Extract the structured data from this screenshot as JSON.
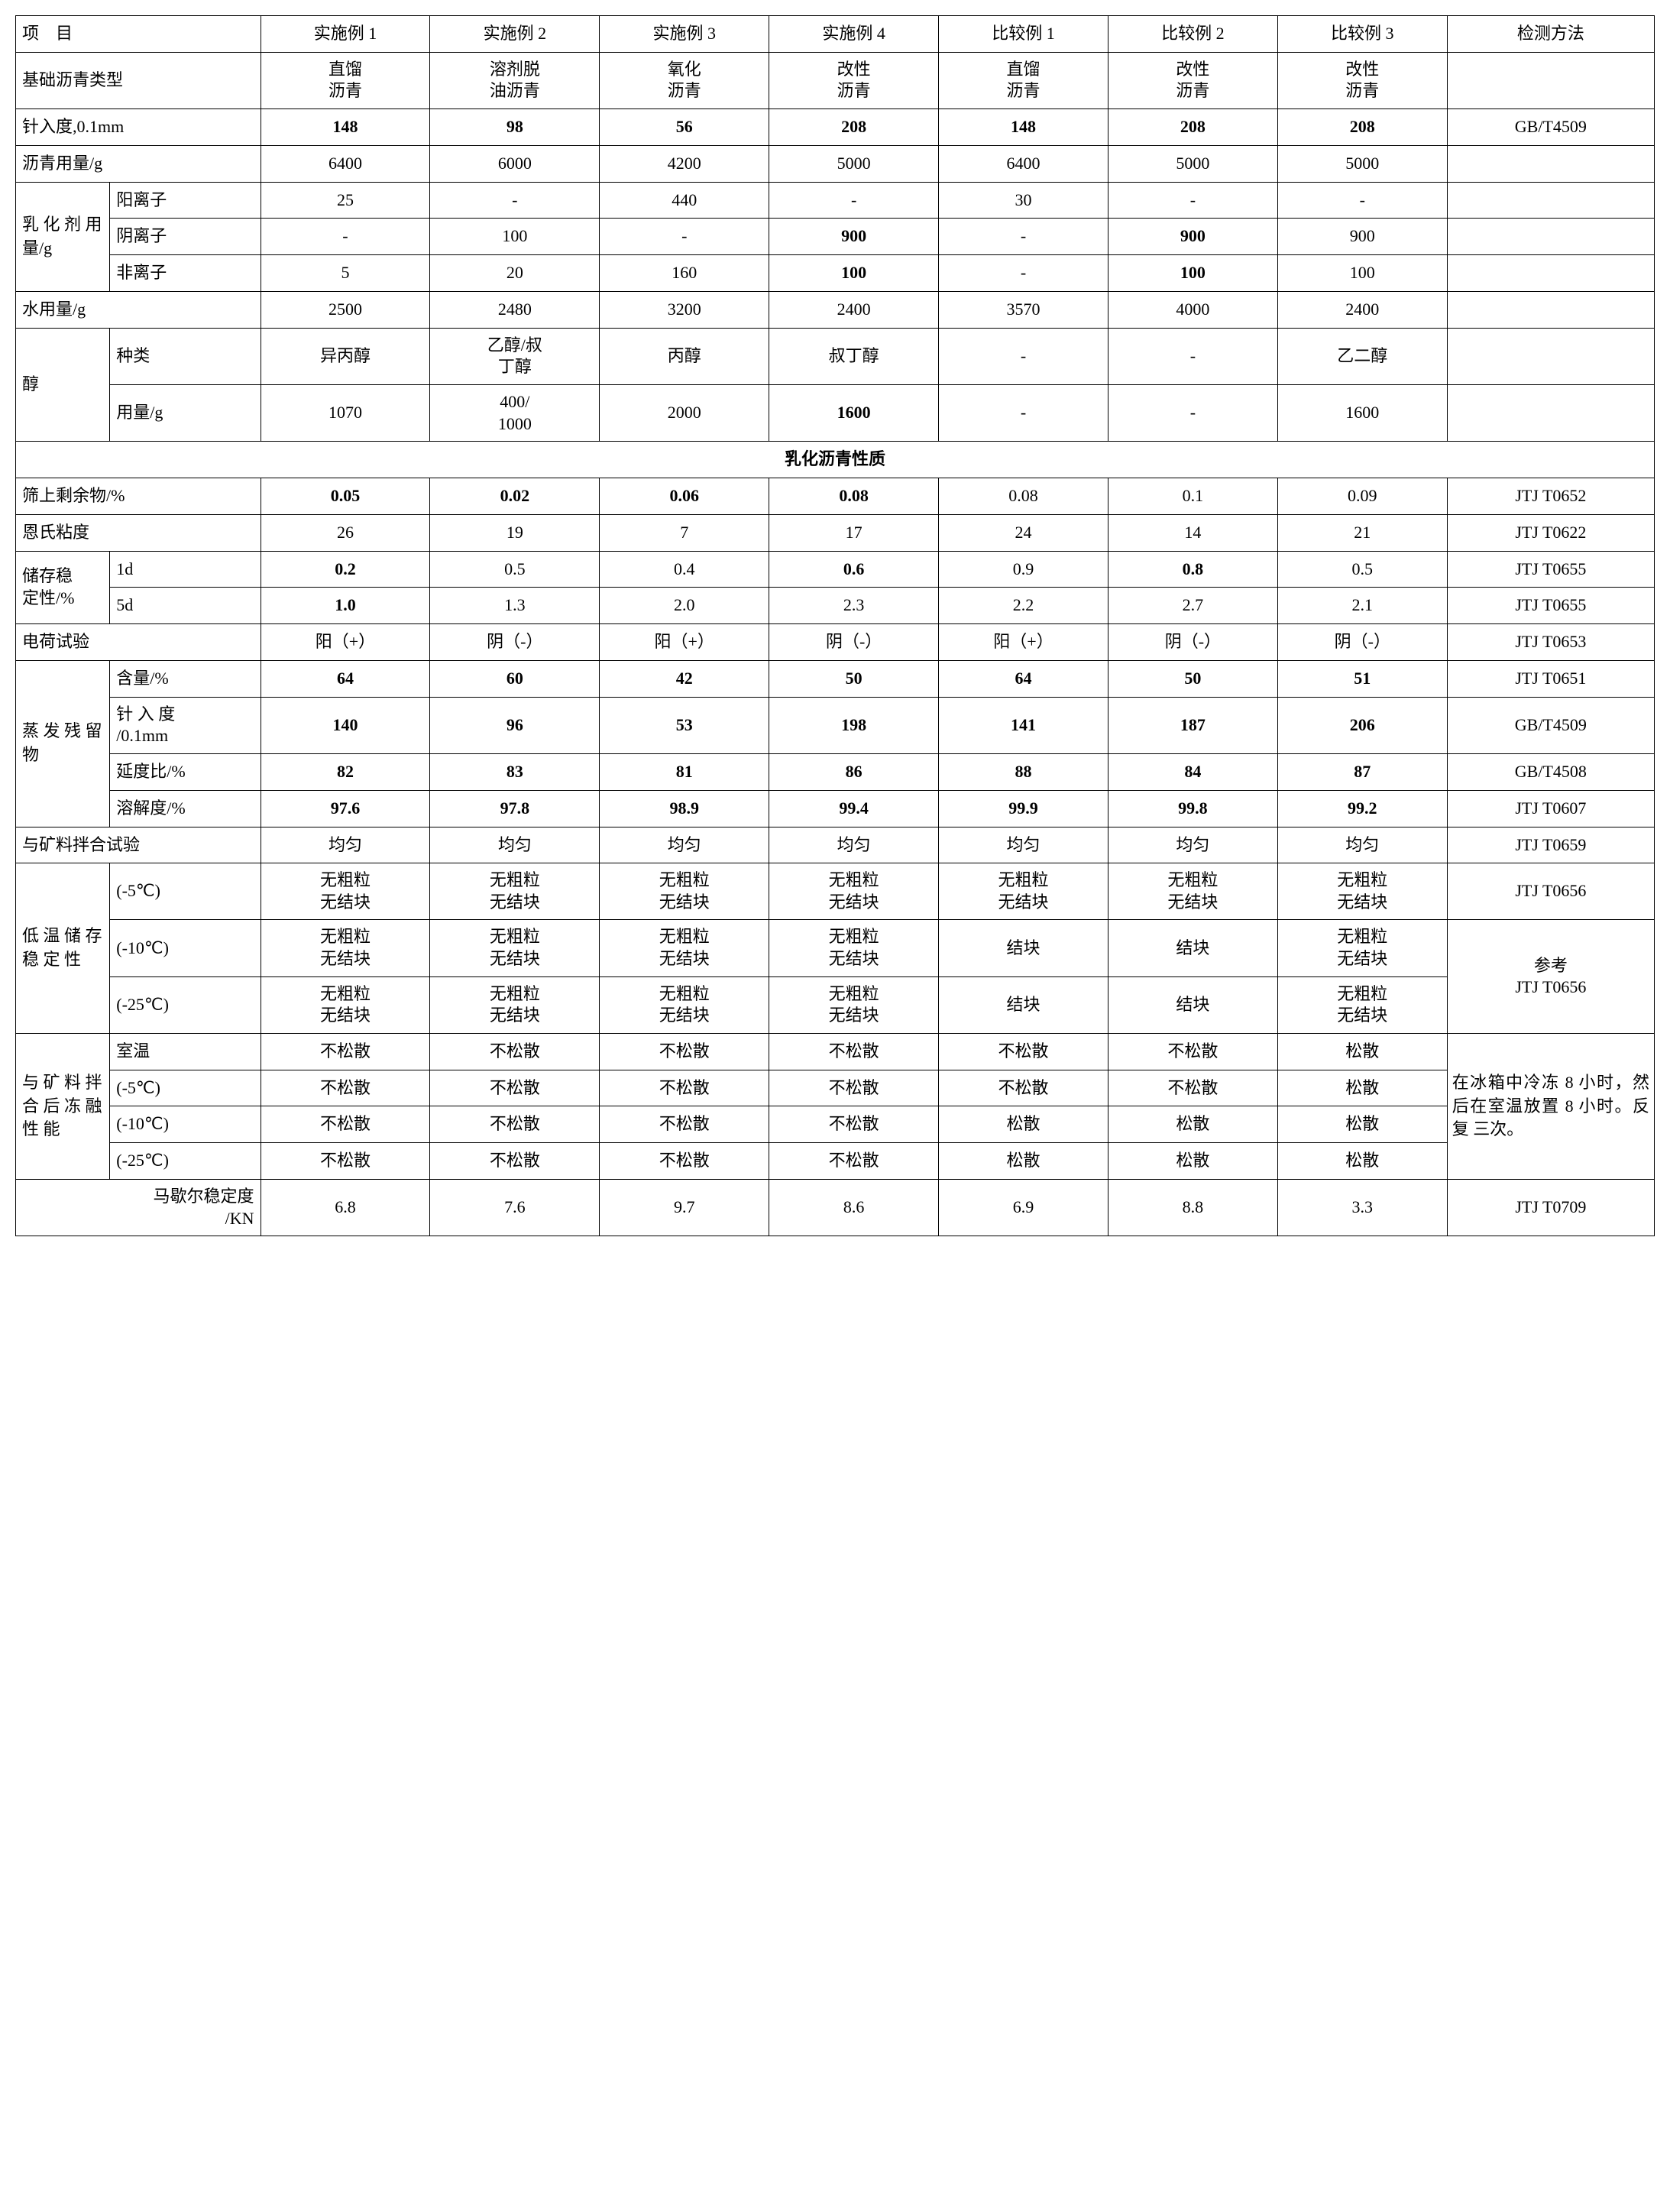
{
  "headers": {
    "item": "项　目",
    "ex1": "实施例 1",
    "ex2": "实施例 2",
    "ex3": "实施例 3",
    "ex4": "实施例 4",
    "cmp1": "比较例 1",
    "cmp2": "比较例 2",
    "cmp3": "比较例 3",
    "method": "检测方法"
  },
  "base_asphalt": {
    "label": "基础沥青类型",
    "v1": "直馏\n沥青",
    "v2": "溶剂脱\n油沥青",
    "v3": "氧化\n沥青",
    "v4": "改性\n沥青",
    "v5": "直馏\n沥青",
    "v6": "改性\n沥青",
    "v7": "改性\n沥青",
    "m": ""
  },
  "penetration": {
    "label": "针入度,0.1mm",
    "v1": "148",
    "v2": "98",
    "v3": "56",
    "v4": "208",
    "v5": "148",
    "v6": "208",
    "v7": "208",
    "m": "GB/T4509"
  },
  "asphalt_amount": {
    "label": "沥青用量/g",
    "v1": "6400",
    "v2": "6000",
    "v3": "4200",
    "v4": "5000",
    "v5": "6400",
    "v6": "5000",
    "v7": "5000",
    "m": ""
  },
  "emulsifier": {
    "group_label": "乳 化 剂 用 量/g",
    "cation": {
      "label": "阳离子",
      "v1": "25",
      "v2": "-",
      "v3": "440",
      "v4": "-",
      "v5": "30",
      "v6": "-",
      "v7": "-"
    },
    "anion": {
      "label": "阴离子",
      "v1": "-",
      "v2": "100",
      "v3": "-",
      "v4": "900",
      "v5": "-",
      "v6": "900",
      "v7": "900"
    },
    "nonion": {
      "label": "非离子",
      "v1": "5",
      "v2": "20",
      "v3": "160",
      "v4": "100",
      "v5": "-",
      "v6": "100",
      "v7": "100"
    }
  },
  "water": {
    "label": "水用量/g",
    "v1": "2500",
    "v2": "2480",
    "v3": "3200",
    "v4": "2400",
    "v5": "3570",
    "v6": "4000",
    "v7": "2400",
    "m": ""
  },
  "alcohol": {
    "group_label": "醇",
    "type": {
      "label": "种类",
      "v1": "异丙醇",
      "v2": "乙醇/叔\n丁醇",
      "v3": "丙醇",
      "v4": "叔丁醇",
      "v5": "-",
      "v6": "-",
      "v7": "乙二醇"
    },
    "amount": {
      "label": "用量/g",
      "v1": "1070",
      "v2": "400/\n1000",
      "v3": "2000",
      "v4": "1600",
      "v5": "-",
      "v6": "-",
      "v7": "1600"
    }
  },
  "section_header": "乳化沥青性质",
  "residue_sieve": {
    "label": "筛上剩余物/%",
    "v1": "0.05",
    "v2": "0.02",
    "v3": "0.06",
    "v4": "0.08",
    "v5": "0.08",
    "v6": "0.1",
    "v7": "0.09",
    "m": "JTJ T0652"
  },
  "engler": {
    "label": "恩氏粘度",
    "v1": "26",
    "v2": "19",
    "v3": "7",
    "v4": "17",
    "v5": "24",
    "v6": "14",
    "v7": "21",
    "m": "JTJ T0622"
  },
  "storage": {
    "group_label": "储存稳\n定性/%",
    "d1": {
      "label": "1d",
      "v1": "0.2",
      "v2": "0.5",
      "v3": "0.4",
      "v4": "0.6",
      "v5": "0.9",
      "v6": "0.8",
      "v7": "0.5",
      "m": "JTJ T0655"
    },
    "d5": {
      "label": "5d",
      "v1": "1.0",
      "v2": "1.3",
      "v3": "2.0",
      "v4": "2.3",
      "v5": "2.2",
      "v6": "2.7",
      "v7": "2.1",
      "m": "JTJ T0655"
    }
  },
  "charge": {
    "label": "电荷试验",
    "v1": "阳（+）",
    "v2": "阴（-）",
    "v3": "阳（+）",
    "v4": "阴（-）",
    "v5": "阳（+）",
    "v6": "阴（-）",
    "v7": "阴（-）",
    "m": "JTJ T0653"
  },
  "evap": {
    "group_label": "蒸 发 残 留 物",
    "content": {
      "label": "含量/%",
      "v1": "64",
      "v2": "60",
      "v3": "42",
      "v4": "50",
      "v5": "64",
      "v6": "50",
      "v7": "51",
      "m": "JTJ T0651"
    },
    "penetration": {
      "label": "针 入 度\n/0.1mm",
      "v1": "140",
      "v2": "96",
      "v3": "53",
      "v4": "198",
      "v5": "141",
      "v6": "187",
      "v7": "206",
      "m": "GB/T4509"
    },
    "ductility": {
      "label": "延度比/%",
      "v1": "82",
      "v2": "83",
      "v3": "81",
      "v4": "86",
      "v5": "88",
      "v6": "84",
      "v7": "87",
      "m": "GB/T4508"
    },
    "solubility": {
      "label": "溶解度/%",
      "v1": "97.6",
      "v2": "97.8",
      "v3": "98.9",
      "v4": "99.4",
      "v5": "99.9",
      "v6": "99.8",
      "v7": "99.2",
      "m": "JTJ T0607"
    }
  },
  "mix_test": {
    "label": "与矿料拌合试验",
    "v1": "均匀",
    "v2": "均匀",
    "v3": "均匀",
    "v4": "均匀",
    "v5": "均匀",
    "v6": "均匀",
    "v7": "均匀",
    "m": "JTJ T0659"
  },
  "low_temp": {
    "group_label": "低 温 储 存 稳 定 性",
    "t5": {
      "label": "(-5℃)",
      "v1": "无粗粒\n无结块",
      "v2": "无粗粒\n无结块",
      "v3": "无粗粒\n无结块",
      "v4": "无粗粒\n无结块",
      "v5": "无粗粒\n无结块",
      "v6": "无粗粒\n无结块",
      "v7": "无粗粒\n无结块",
      "m": "JTJ T0656"
    },
    "t10": {
      "label": "(-10℃)",
      "v1": "无粗粒\n无结块",
      "v2": "无粗粒\n无结块",
      "v3": "无粗粒\n无结块",
      "v4": "无粗粒\n无结块",
      "v5": "结块",
      "v6": "结块",
      "v7": "无粗粒\n无结块"
    },
    "t25": {
      "label": "(-25℃)",
      "v1": "无粗粒\n无结块",
      "v2": "无粗粒\n无结块",
      "v3": "无粗粒\n无结块",
      "v4": "无粗粒\n无结块",
      "v5": "结块",
      "v6": "结块",
      "v7": "无粗粒\n无结块"
    },
    "m_ref": "参考\nJTJ T0656"
  },
  "freeze_thaw": {
    "group_label": "与 矿 料 拌 合 后 冻 融 性 能",
    "room": {
      "label": "室温",
      "v1": "不松散",
      "v2": "不松散",
      "v3": "不松散",
      "v4": "不松散",
      "v5": "不松散",
      "v6": "不松散",
      "v7": "松散"
    },
    "t5": {
      "label": "(-5℃)",
      "v1": "不松散",
      "v2": "不松散",
      "v3": "不松散",
      "v4": "不松散",
      "v5": "不松散",
      "v6": "不松散",
      "v7": "松散"
    },
    "t10": {
      "label": "(-10℃)",
      "v1": "不松散",
      "v2": "不松散",
      "v3": "不松散",
      "v4": "不松散",
      "v5": "松散",
      "v6": "松散",
      "v7": "松散"
    },
    "t25": {
      "label": "(-25℃)",
      "v1": "不松散",
      "v2": "不松散",
      "v3": "不松散",
      "v4": "不松散",
      "v5": "松散",
      "v6": "松散",
      "v7": "松散"
    },
    "m": "在冰箱中冷冻 8 小时，然后在室温放置 8 小时。反 复 三次。"
  },
  "marshall": {
    "label": "马歇尔稳定度\n/KN",
    "v1": "6.8",
    "v2": "7.6",
    "v3": "9.7",
    "v4": "8.6",
    "v5": "6.9",
    "v6": "8.8",
    "v7": "3.3",
    "m": "JTJ T0709"
  }
}
